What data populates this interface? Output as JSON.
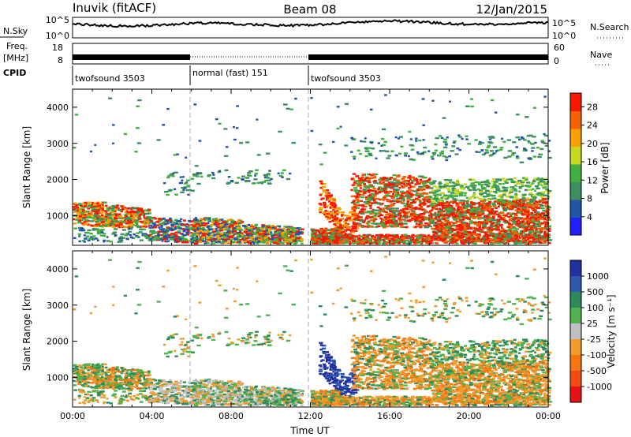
{
  "header": {
    "station": "Inuvik (fitACF)",
    "beam": "Beam 08",
    "date": "12/Jan/2015"
  },
  "strips": {
    "nsky_label": "N.Sky",
    "nsky_ticks": [
      "10^5",
      "10^0"
    ],
    "nsearch_label": "N.Search",
    "nsearch_ticks": [
      "10^5",
      "10^0"
    ],
    "freq_label_1": "Freq.",
    "freq_label_2": "[MHz]",
    "freq_ticks": [
      "18",
      "8"
    ],
    "nave_label": "Nave",
    "nave_ticks": [
      "60",
      "0"
    ],
    "cpid_label": "CPID",
    "cpid_segments": [
      {
        "label": "twofsound 3503",
        "start_h": 0,
        "end_h": 6
      },
      {
        "label": "normal (fast) 151",
        "start_h": 6,
        "end_h": 12
      },
      {
        "label": "twofsound 3503",
        "start_h": 12,
        "end_h": 24
      }
    ]
  },
  "chart_data": [
    {
      "type": "heatmap",
      "title": "",
      "quantity": "Power",
      "xlabel": "",
      "ylabel": "Slant Range [km]",
      "x_ticks": [
        "00:00",
        "04:00",
        "08:00",
        "12:00",
        "16:00",
        "20:00",
        "00:00"
      ],
      "x_range_hours": [
        0,
        24
      ],
      "y_ticks": [
        1000,
        2000,
        3000,
        4000
      ],
      "ylim": [
        180,
        4500
      ],
      "colorbar_label": "Power [dB]",
      "colorbar_ticks": [
        4,
        8,
        12,
        16,
        20,
        24,
        28
      ],
      "colorbar_range": [
        0,
        31
      ],
      "colors": [
        "#2020ff",
        "#2255aa",
        "#3c9060",
        "#40b040",
        "#c8d820",
        "#f8a000",
        "#f86000",
        "#f81800"
      ]
    },
    {
      "type": "heatmap",
      "title": "",
      "quantity": "Velocity",
      "xlabel": "Time UT",
      "ylabel": "Slant Range [km]",
      "x_ticks": [
        "00:00",
        "04:00",
        "08:00",
        "12:00",
        "16:00",
        "20:00",
        "00:00"
      ],
      "x_range_hours": [
        0,
        24
      ],
      "y_ticks": [
        1000,
        2000,
        3000,
        4000
      ],
      "ylim": [
        180,
        4500
      ],
      "colorbar_label": "Velocity [m s⁻¹]",
      "colorbar_ticks": [
        "1000",
        "500",
        "100",
        "25",
        "-25",
        "-100",
        "-500",
        "-1000"
      ],
      "colors": [
        "#2030a0",
        "#2f58b0",
        "#2e8a5a",
        "#4fb24f",
        "#c0c0c0",
        "#f29a2a",
        "#f57510",
        "#f24a10",
        "#e81010"
      ]
    }
  ]
}
